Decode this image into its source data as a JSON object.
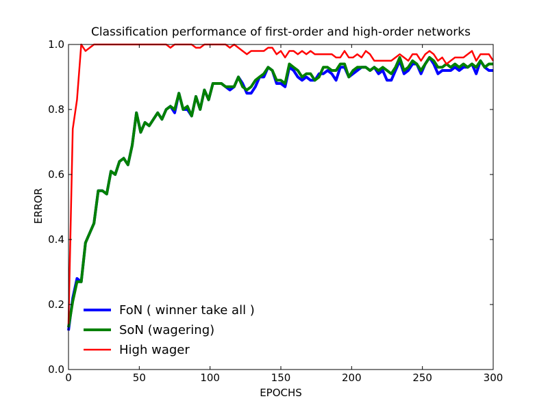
{
  "chart_data": {
    "type": "line",
    "title": "Classification performance of first-order and high-order networks",
    "xlabel": "EPOCHS",
    "ylabel": "ERROR",
    "xlim": [
      0,
      300
    ],
    "ylim": [
      0.0,
      1.0
    ],
    "xticks": [
      "0",
      "50",
      "100",
      "150",
      "200",
      "250",
      "300"
    ],
    "yticks": [
      "0.0",
      "0.2",
      "0.4",
      "0.6",
      "0.8",
      "1.0"
    ],
    "grid": false,
    "legend_position": "lower-left",
    "series": [
      {
        "name": "FoN ( winner take all )",
        "color": "#0000ff",
        "x": [
          0,
          3,
          6,
          9,
          12,
          15,
          18,
          21,
          24,
          27,
          30,
          33,
          36,
          39,
          42,
          45,
          48,
          51,
          54,
          57,
          60,
          63,
          66,
          69,
          72,
          75,
          78,
          81,
          84,
          87,
          90,
          93,
          96,
          99,
          102,
          105,
          108,
          111,
          114,
          117,
          120,
          123,
          126,
          129,
          132,
          135,
          138,
          141,
          144,
          147,
          150,
          153,
          156,
          159,
          162,
          165,
          168,
          171,
          174,
          177,
          180,
          183,
          186,
          189,
          192,
          195,
          198,
          201,
          204,
          207,
          210,
          213,
          216,
          219,
          222,
          225,
          228,
          231,
          234,
          237,
          240,
          243,
          246,
          249,
          252,
          255,
          258,
          261,
          264,
          267,
          270,
          273,
          276,
          279,
          282,
          285,
          288,
          291,
          294,
          297,
          300
        ],
        "y": [
          0.12,
          0.22,
          0.28,
          0.27,
          0.39,
          0.42,
          0.45,
          0.55,
          0.55,
          0.54,
          0.61,
          0.6,
          0.64,
          0.65,
          0.63,
          0.69,
          0.79,
          0.73,
          0.76,
          0.75,
          0.77,
          0.79,
          0.77,
          0.8,
          0.81,
          0.79,
          0.85,
          0.8,
          0.8,
          0.78,
          0.84,
          0.8,
          0.86,
          0.83,
          0.88,
          0.88,
          0.88,
          0.87,
          0.86,
          0.87,
          0.9,
          0.88,
          0.85,
          0.85,
          0.87,
          0.9,
          0.9,
          0.93,
          0.92,
          0.88,
          0.88,
          0.87,
          0.93,
          0.92,
          0.9,
          0.89,
          0.9,
          0.89,
          0.89,
          0.91,
          0.91,
          0.92,
          0.91,
          0.89,
          0.93,
          0.93,
          0.9,
          0.91,
          0.92,
          0.93,
          0.93,
          0.92,
          0.93,
          0.91,
          0.92,
          0.89,
          0.89,
          0.92,
          0.95,
          0.91,
          0.92,
          0.94,
          0.94,
          0.91,
          0.94,
          0.96,
          0.94,
          0.91,
          0.92,
          0.92,
          0.92,
          0.93,
          0.92,
          0.93,
          0.93,
          0.94,
          0.91,
          0.95,
          0.93,
          0.92,
          0.92
        ]
      },
      {
        "name": "SoN (wagering)",
        "color": "#008000",
        "x": [
          0,
          3,
          6,
          9,
          12,
          15,
          18,
          21,
          24,
          27,
          30,
          33,
          36,
          39,
          42,
          45,
          48,
          51,
          54,
          57,
          60,
          63,
          66,
          69,
          72,
          75,
          78,
          81,
          84,
          87,
          90,
          93,
          96,
          99,
          102,
          105,
          108,
          111,
          114,
          117,
          120,
          123,
          126,
          129,
          132,
          135,
          138,
          141,
          144,
          147,
          150,
          153,
          156,
          159,
          162,
          165,
          168,
          171,
          174,
          177,
          180,
          183,
          186,
          189,
          192,
          195,
          198,
          201,
          204,
          207,
          210,
          213,
          216,
          219,
          222,
          225,
          228,
          231,
          234,
          237,
          240,
          243,
          246,
          249,
          252,
          255,
          258,
          261,
          264,
          267,
          270,
          273,
          276,
          279,
          282,
          285,
          288,
          291,
          294,
          297,
          300
        ],
        "y": [
          0.13,
          0.21,
          0.27,
          0.27,
          0.39,
          0.42,
          0.45,
          0.55,
          0.55,
          0.54,
          0.61,
          0.6,
          0.64,
          0.65,
          0.63,
          0.69,
          0.79,
          0.73,
          0.76,
          0.75,
          0.77,
          0.79,
          0.77,
          0.8,
          0.81,
          0.8,
          0.85,
          0.8,
          0.81,
          0.78,
          0.84,
          0.8,
          0.86,
          0.83,
          0.88,
          0.88,
          0.88,
          0.87,
          0.87,
          0.87,
          0.9,
          0.87,
          0.86,
          0.87,
          0.89,
          0.9,
          0.91,
          0.93,
          0.92,
          0.89,
          0.89,
          0.88,
          0.94,
          0.93,
          0.92,
          0.9,
          0.91,
          0.91,
          0.89,
          0.9,
          0.93,
          0.93,
          0.92,
          0.92,
          0.94,
          0.94,
          0.9,
          0.92,
          0.93,
          0.93,
          0.93,
          0.92,
          0.93,
          0.92,
          0.93,
          0.92,
          0.91,
          0.93,
          0.96,
          0.92,
          0.93,
          0.95,
          0.94,
          0.92,
          0.94,
          0.96,
          0.95,
          0.93,
          0.93,
          0.94,
          0.93,
          0.94,
          0.93,
          0.94,
          0.93,
          0.94,
          0.93,
          0.95,
          0.93,
          0.94,
          0.94
        ]
      },
      {
        "name": "High wager",
        "color": "#ff0000",
        "x": [
          0,
          3,
          6,
          9,
          12,
          15,
          18,
          21,
          24,
          27,
          30,
          33,
          36,
          39,
          42,
          45,
          48,
          51,
          54,
          57,
          60,
          63,
          66,
          69,
          72,
          75,
          78,
          81,
          84,
          87,
          90,
          93,
          96,
          99,
          102,
          105,
          108,
          111,
          114,
          117,
          120,
          123,
          126,
          129,
          132,
          135,
          138,
          141,
          144,
          147,
          150,
          153,
          156,
          159,
          162,
          165,
          168,
          171,
          174,
          177,
          180,
          183,
          186,
          189,
          192,
          195,
          198,
          201,
          204,
          207,
          210,
          213,
          216,
          219,
          222,
          225,
          228,
          231,
          234,
          237,
          240,
          243,
          246,
          249,
          252,
          255,
          258,
          261,
          264,
          267,
          270,
          273,
          276,
          279,
          282,
          285,
          288,
          291,
          294,
          297,
          300
        ],
        "y": [
          0.14,
          0.74,
          0.83,
          1.0,
          0.98,
          0.99,
          1.0,
          1.0,
          1.0,
          1.0,
          1.0,
          1.0,
          1.0,
          1.0,
          1.0,
          1.0,
          1.0,
          1.0,
          1.0,
          1.0,
          1.0,
          1.0,
          1.0,
          1.0,
          0.99,
          1.0,
          1.0,
          1.0,
          1.0,
          1.0,
          0.99,
          0.99,
          1.0,
          1.0,
          1.0,
          1.0,
          1.0,
          1.0,
          0.99,
          1.0,
          0.99,
          0.98,
          0.97,
          0.98,
          0.98,
          0.98,
          0.98,
          0.99,
          0.99,
          0.97,
          0.98,
          0.96,
          0.98,
          0.98,
          0.97,
          0.98,
          0.97,
          0.98,
          0.97,
          0.97,
          0.97,
          0.97,
          0.97,
          0.96,
          0.96,
          0.98,
          0.96,
          0.96,
          0.97,
          0.96,
          0.98,
          0.97,
          0.95,
          0.95,
          0.95,
          0.95,
          0.95,
          0.96,
          0.97,
          0.96,
          0.95,
          0.97,
          0.97,
          0.95,
          0.97,
          0.98,
          0.97,
          0.95,
          0.96,
          0.94,
          0.95,
          0.96,
          0.96,
          0.96,
          0.97,
          0.98,
          0.95,
          0.97,
          0.97,
          0.97,
          0.95
        ]
      }
    ]
  }
}
